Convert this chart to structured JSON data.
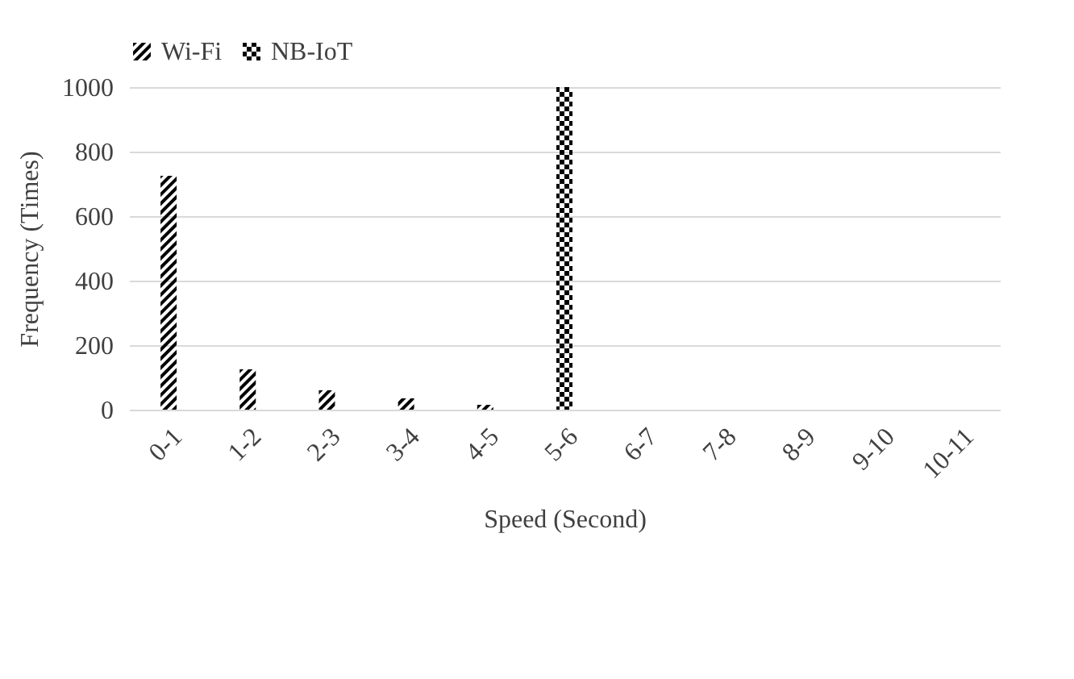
{
  "chart_data": {
    "type": "bar",
    "xlabel": "Speed (Second)",
    "ylabel": "Frequency (Times)",
    "categories": [
      "0-1",
      "1-2",
      "2-3",
      "3-4",
      "4-5",
      "5-6",
      "6-7",
      "7-8",
      "8-9",
      "9-10",
      "10-11"
    ],
    "series": [
      {
        "name": "Wi-Fi",
        "color": "#000000",
        "values": [
          725,
          125,
          60,
          35,
          15,
          0,
          0,
          0,
          0,
          0,
          0
        ]
      },
      {
        "name": "NB-IoT",
        "color": "#000000",
        "values": [
          0,
          0,
          0,
          0,
          0,
          1000,
          0,
          0,
          0,
          0,
          0
        ]
      }
    ],
    "ylim": [
      0,
      1000
    ],
    "yticks": [
      0,
      200,
      400,
      600,
      800,
      1000
    ],
    "grid": "y",
    "legend": "top"
  }
}
